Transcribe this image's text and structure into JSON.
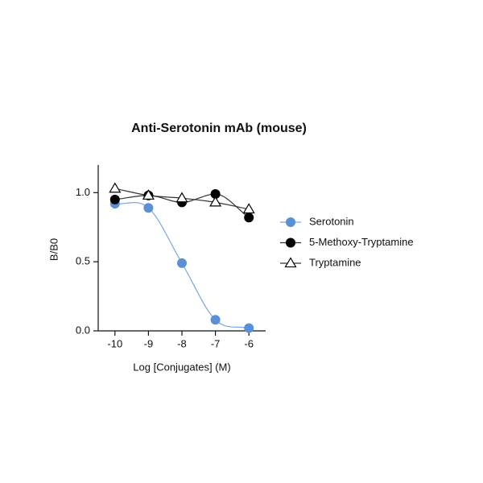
{
  "chart_data": {
    "type": "scatter",
    "title": "Anti-Serotonin mAb (mouse)",
    "x_label": "Log [Conjugates] (M)",
    "y_label": "B/B0",
    "x": [
      -10,
      -9,
      -8,
      -7,
      -6
    ],
    "series": [
      {
        "name": "Serotonin",
        "color": "#5b8fd6",
        "marker": "circle",
        "values": [
          0.92,
          0.89,
          0.49,
          0.08,
          0.02
        ]
      },
      {
        "name": "5-Methoxy-Tryptamine",
        "color": "#000000",
        "marker": "circle",
        "values": [
          0.95,
          0.98,
          0.93,
          0.99,
          0.82
        ]
      },
      {
        "name": "Tryptamine",
        "color": "#000000",
        "marker": "triangle-open",
        "values": [
          1.03,
          0.98,
          0.96,
          0.93,
          0.88
        ]
      }
    ],
    "xlim": [
      -10.5,
      -5.5
    ],
    "xticks": [
      -10,
      -9,
      -8,
      -7,
      -6
    ],
    "ylim": [
      0,
      1.2
    ],
    "yticks": [
      {
        "value": 0,
        "label": "0.0"
      },
      0.5,
      {
        "value": 1,
        "label": "1.0"
      }
    ],
    "legend": "right",
    "fit_curves": true
  }
}
